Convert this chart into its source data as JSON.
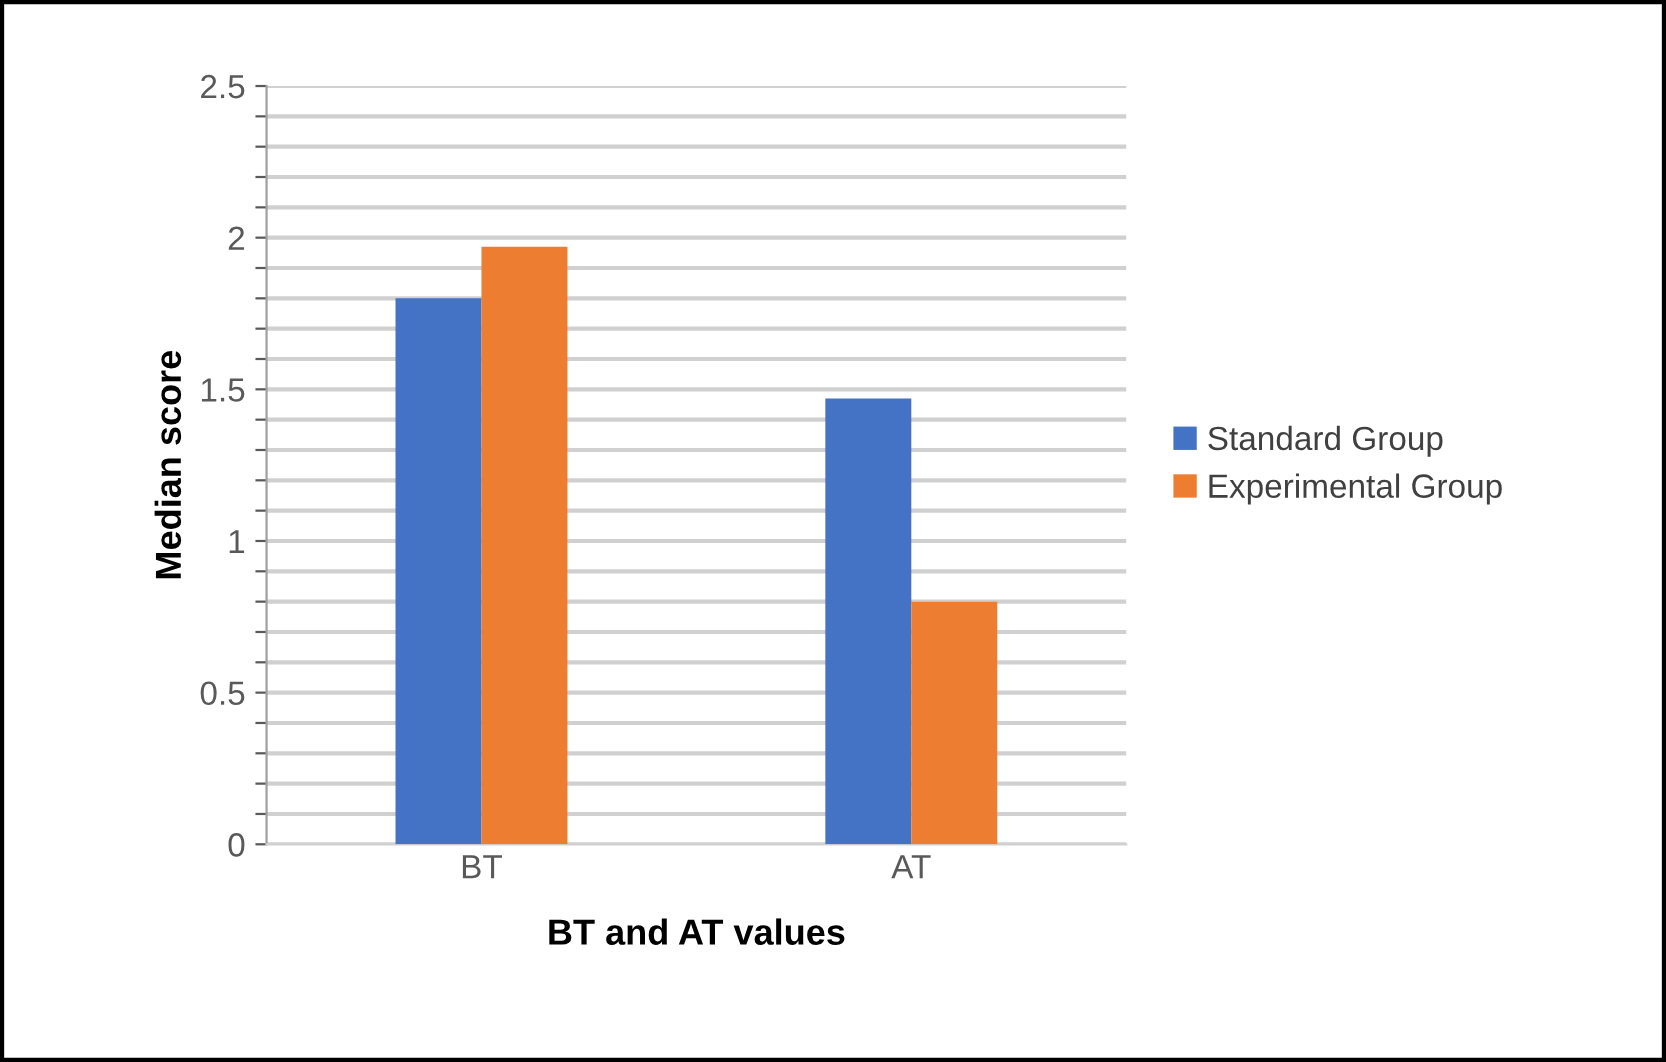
{
  "chart_data": {
    "type": "bar",
    "xlabel": "BT and AT values",
    "ylabel": "Median score",
    "categories": [
      "BT",
      "AT"
    ],
    "series": [
      {
        "name": "Standard Group",
        "color": "#4472c4",
        "values": [
          1.8,
          1.47
        ]
      },
      {
        "name": "Experimental Group",
        "color": "#ed7d31",
        "values": [
          1.97,
          0.8
        ]
      }
    ],
    "ylim": [
      0,
      2.5
    ],
    "yticks": [
      0,
      {
        "value": 0.1,
        "label": null
      },
      {
        "value": 0.2,
        "label": null
      },
      {
        "value": 0.3,
        "label": null
      },
      {
        "value": 0.4,
        "label": null
      },
      0.5,
      {
        "value": 0.6,
        "label": null
      },
      {
        "value": 0.7,
        "label": null
      },
      {
        "value": 0.8,
        "label": null
      },
      {
        "value": 0.9,
        "label": null
      },
      1,
      {
        "value": 1.1,
        "label": null
      },
      {
        "value": 1.2,
        "label": null
      },
      {
        "value": 1.3,
        "label": null
      },
      {
        "value": 1.4,
        "label": null
      },
      1.5,
      {
        "value": 1.6,
        "label": null
      },
      {
        "value": 1.7,
        "label": null
      },
      {
        "value": 1.8,
        "label": null
      },
      {
        "value": 1.9,
        "label": null
      },
      2,
      {
        "value": 2.1,
        "label": null
      },
      {
        "value": 2.2,
        "label": null
      },
      {
        "value": 2.3,
        "label": null
      },
      {
        "value": 2.4,
        "label": null
      },
      2.5
    ],
    "grid": "y",
    "legend": "right"
  }
}
